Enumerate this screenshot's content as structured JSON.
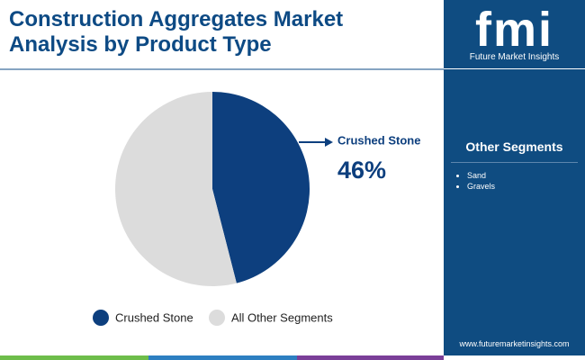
{
  "chart_data": {
    "type": "pie",
    "title": "Construction Aggregates Market Analysis by Product Type",
    "categories": [
      "Crushed Stone",
      "All Other Segments"
    ],
    "values": [
      46,
      54
    ],
    "value_labels": [
      "46%",
      null
    ],
    "colors": [
      "#0d3f7e",
      "#dcdcdc"
    ]
  },
  "brand": {
    "logo": "fmi",
    "name": "Future Market Insights"
  },
  "sidebar": {
    "heading": "Other Segments",
    "items": [
      "Sand",
      "Gravels"
    ]
  },
  "footer": {
    "url": "www.futuremarketinsights.com"
  }
}
